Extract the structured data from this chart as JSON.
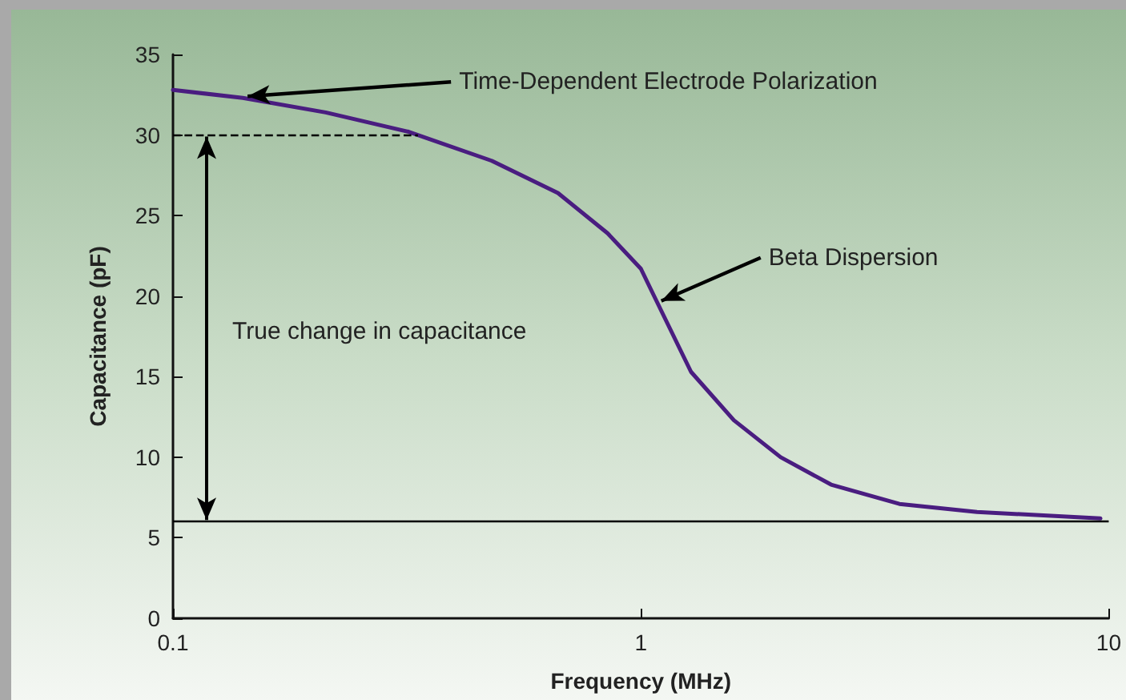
{
  "chart_data": {
    "type": "line",
    "xlabel": "Frequency (MHz)",
    "ylabel": "Capacitance (pF)",
    "series": [
      {
        "color": "#4a1d80",
        "x": [
          0.1,
          0.141,
          0.212,
          0.319,
          0.48,
          0.665,
          0.849,
          1.0,
          1.08,
          1.28,
          1.58,
          1.99,
          2.55,
          3.57,
          5.23,
          9.6
        ],
        "values": [
          32.8,
          32.3,
          31.4,
          30.2,
          28.4,
          26.4,
          23.9,
          21.7,
          19.7,
          15.3,
          12.3,
          10.0,
          8.3,
          7.1,
          6.6,
          6.2
        ]
      }
    ],
    "log": "x",
    "xlim": [
      0.1,
      10
    ],
    "xticks": [
      0.1,
      1,
      10
    ],
    "ylim": [
      0,
      35
    ],
    "yticks": [
      0,
      5,
      10,
      15,
      20,
      25,
      30,
      35
    ],
    "grid": false,
    "marker": "none",
    "line_style": "solid",
    "ref_lines": [
      {
        "axis": "y",
        "value": 30,
        "line_style": "dashed",
        "color": "#000000"
      },
      {
        "axis": "y",
        "value": 6,
        "line_style": "solid",
        "color": "#000000"
      }
    ],
    "annotations": [
      {
        "text": "Time-Dependent Electrode Polarization",
        "x": 0.141,
        "y": 32.3
      },
      {
        "text": "Beta Dispersion",
        "x": 1.08,
        "y": 19.6
      },
      "True change in capacitance"
    ]
  }
}
